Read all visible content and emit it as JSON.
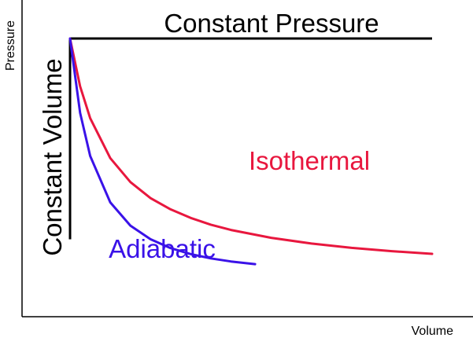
{
  "chart_data": {
    "type": "line",
    "title": "",
    "xlabel": "Volume",
    "ylabel": "Pressure",
    "xlim": [
      1,
      10
    ],
    "ylim": [
      0,
      1.18
    ],
    "grid": false,
    "legend": "none",
    "series": [
      {
        "name": "Isothermal",
        "color": "#e8173e",
        "x": [
          1,
          1.25,
          1.5,
          2,
          2.5,
          3,
          3.5,
          4,
          4.5,
          5,
          6,
          7,
          8,
          9,
          10
        ],
        "y": [
          1.0,
          0.8,
          0.667,
          0.5,
          0.4,
          0.333,
          0.286,
          0.25,
          0.222,
          0.2,
          0.167,
          0.143,
          0.125,
          0.111,
          0.1
        ]
      },
      {
        "name": "Adiabatic",
        "color": "#3a12e8",
        "x": [
          1,
          1.25,
          1.5,
          2,
          2.5,
          3,
          3.5,
          4,
          4.5,
          5,
          5.6
        ],
        "y": [
          1.0,
          0.689,
          0.509,
          0.315,
          0.218,
          0.161,
          0.124,
          0.099,
          0.081,
          0.068,
          0.057
        ]
      }
    ],
    "lines": [
      {
        "name": "Constant Pressure",
        "orientation": "horizontal",
        "value": 1.0,
        "from": 1,
        "to": 10
      },
      {
        "name": "Constant Volume",
        "orientation": "vertical",
        "value": 1,
        "from": 0.0,
        "to": 1.0
      }
    ]
  }
}
